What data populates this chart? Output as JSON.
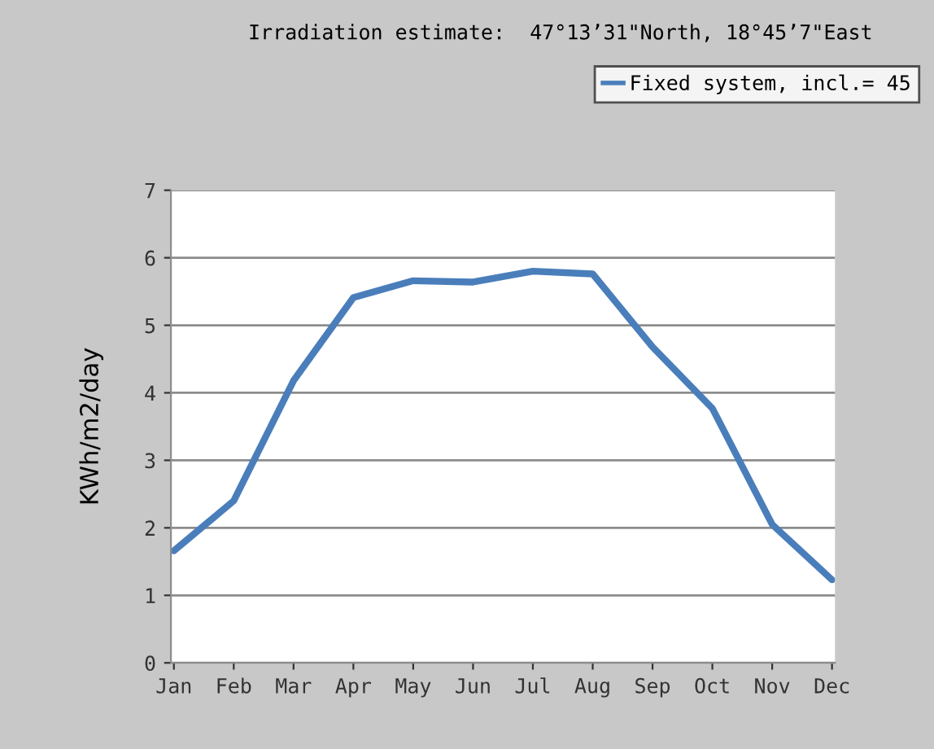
{
  "chart_data": {
    "type": "line",
    "title": "Irradiation estimate:  47°13’31\"North, 18°45’7\"East",
    "ylabel": "KWh/m2/day",
    "categories": [
      "Jan",
      "Feb",
      "Mar",
      "Apr",
      "May",
      "Jun",
      "Jul",
      "Aug",
      "Sep",
      "Oct",
      "Nov",
      "Dec"
    ],
    "series": [
      {
        "name": "Fixed system, incl.= 45",
        "color": "#4a7ebb",
        "values": [
          1.66,
          2.4,
          4.18,
          5.41,
          5.66,
          5.64,
          5.8,
          5.76,
          4.68,
          3.77,
          2.05,
          1.23
        ]
      }
    ],
    "ylim": [
      0,
      7
    ],
    "yticks": [
      0,
      1,
      2,
      3,
      4,
      5,
      6,
      7
    ],
    "grid": "y",
    "legend": "top right",
    "marker": "none",
    "line_style": "solid"
  }
}
